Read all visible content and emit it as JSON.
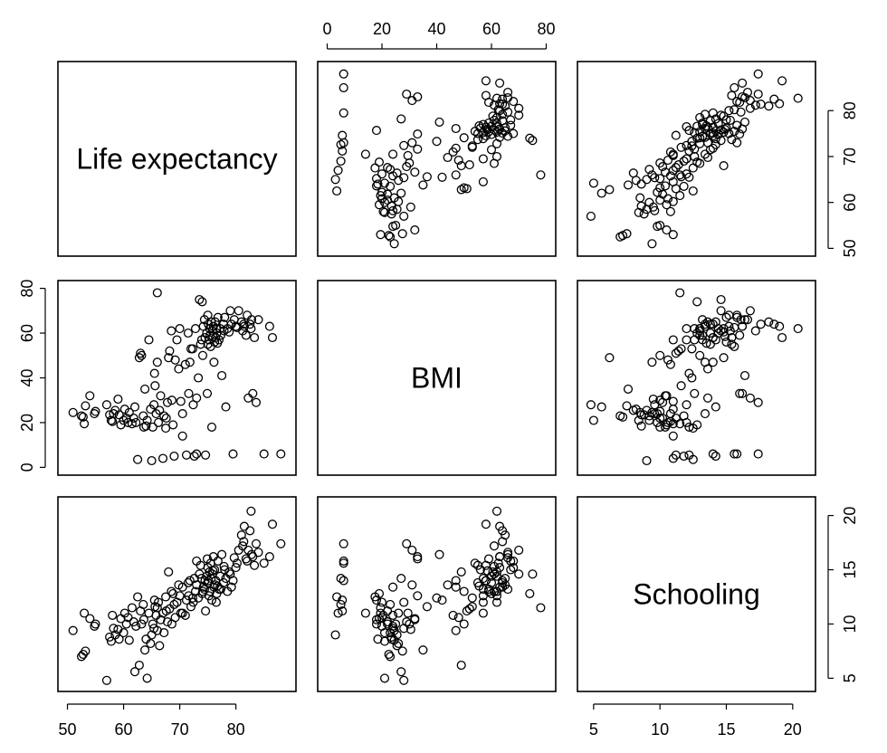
{
  "chart_data": {
    "type": "scatter-matrix",
    "variables": [
      {
        "name": "Life expectancy",
        "lim": [
          50,
          89
        ],
        "ticks": [
          50,
          60,
          70,
          80
        ]
      },
      {
        "name": "BMI",
        "lim": [
          0,
          80
        ],
        "ticks": [
          0,
          20,
          40,
          60,
          80
        ]
      },
      {
        "name": "Schooling",
        "lim": [
          4.5,
          21
        ],
        "ticks": [
          5,
          10,
          15,
          20
        ]
      }
    ],
    "grid": false,
    "point_shape": "open-circle",
    "point_color": "#000000",
    "observations": [
      [
        51.0,
        24.5,
        9.4
      ],
      [
        52.5,
        23.0,
        7.0
      ],
      [
        52.8,
        22.5,
        7.2
      ],
      [
        53.0,
        19.5,
        11.0
      ],
      [
        53.2,
        27.5,
        7.5
      ],
      [
        54.0,
        32.0,
        10.5
      ],
      [
        54.8,
        24.0,
        9.8
      ],
      [
        55.0,
        25.0,
        10.0
      ],
      [
        57.0,
        28.0,
        4.8
      ],
      [
        57.5,
        23.5,
        8.8
      ],
      [
        57.8,
        21.0,
        8.4
      ],
      [
        58.0,
        20.5,
        10.8
      ],
      [
        58.2,
        24.0,
        9.6
      ],
      [
        58.5,
        25.5,
        9.0
      ],
      [
        59.0,
        30.5,
        9.5
      ],
      [
        59.2,
        23.5,
        8.6
      ],
      [
        59.5,
        19.0,
        10.5
      ],
      [
        60.0,
        21.0,
        9.2
      ],
      [
        60.2,
        26.0,
        11.0
      ],
      [
        60.5,
        22.0,
        10.0
      ],
      [
        61.0,
        24.5,
        8.5
      ],
      [
        61.5,
        19.5,
        11.5
      ],
      [
        61.8,
        22.0,
        10.2
      ],
      [
        62.0,
        27.0,
        5.6
      ],
      [
        62.2,
        20.0,
        9.8
      ],
      [
        62.5,
        3.5,
        12.5
      ],
      [
        62.8,
        49.0,
        6.2
      ],
      [
        63.0,
        51.0,
        11.2
      ],
      [
        63.2,
        50.0,
        10.0
      ],
      [
        63.5,
        23.0,
        11.8
      ],
      [
        63.8,
        35.0,
        7.6
      ],
      [
        64.0,
        18.5,
        8.6
      ],
      [
        64.2,
        21.0,
        5.0
      ],
      [
        64.5,
        57.0,
        11.0
      ],
      [
        64.8,
        26.0,
        8.2
      ],
      [
        65.0,
        3.0,
        9.0
      ],
      [
        65.2,
        18.0,
        10.0
      ],
      [
        65.5,
        42.0,
        12.2
      ],
      [
        65.6,
        36.5,
        11.6
      ],
      [
        65.8,
        24.0,
        10.8
      ],
      [
        66.0,
        47.0,
        9.4
      ],
      [
        66.0,
        78.0,
        11.5
      ],
      [
        66.2,
        20.0,
        12.0
      ],
      [
        66.4,
        25.5,
        8.0
      ],
      [
        66.6,
        32.0,
        10.4
      ],
      [
        67.0,
        4.0,
        11.0
      ],
      [
        67.2,
        23.0,
        9.2
      ],
      [
        67.5,
        17.5,
        12.5
      ],
      [
        67.8,
        29.0,
        10.2
      ],
      [
        68.0,
        49.0,
        14.8
      ],
      [
        68.2,
        52.0,
        11.4
      ],
      [
        68.5,
        61.0,
        13.0
      ],
      [
        68.8,
        19.0,
        12.8
      ],
      [
        69.0,
        5.0,
        11.8
      ],
      [
        69.2,
        48.0,
        10.6
      ],
      [
        69.5,
        57.0,
        12.0
      ],
      [
        69.8,
        44.0,
        13.6
      ],
      [
        70.0,
        62.0,
        12.6
      ],
      [
        70.2,
        29.5,
        11.0
      ],
      [
        70.5,
        24.0,
        13.4
      ],
      [
        71.0,
        46.0,
        10.8
      ],
      [
        71.2,
        5.5,
        12.2
      ],
      [
        71.5,
        60.0,
        13.8
      ],
      [
        71.8,
        47.0,
        14.0
      ],
      [
        72.0,
        53.0,
        11.6
      ],
      [
        72.3,
        53.0,
        12.4
      ],
      [
        72.6,
        5.0,
        14.2
      ],
      [
        72.8,
        62.0,
        13.0
      ],
      [
        73.0,
        31.0,
        13.6
      ],
      [
        73.3,
        40.0,
        12.4
      ],
      [
        73.5,
        75.0,
        14.6
      ],
      [
        73.7,
        55.0,
        15.4
      ],
      [
        74.0,
        74.0,
        12.8
      ],
      [
        74.2,
        63.0,
        13.4
      ],
      [
        74.4,
        66.0,
        13.2
      ],
      [
        74.5,
        58.0,
        14.0
      ],
      [
        74.6,
        5.5,
        11.2
      ],
      [
        74.8,
        60.0,
        14.4
      ],
      [
        74.9,
        33.0,
        16.0
      ],
      [
        75.0,
        55.0,
        13.8
      ],
      [
        75.0,
        68.0,
        15.2
      ],
      [
        75.2,
        57.0,
        12.6
      ],
      [
        75.3,
        62.0,
        14.8
      ],
      [
        75.4,
        59.0,
        13.0
      ],
      [
        75.5,
        54.0,
        15.6
      ],
      [
        75.6,
        65.0,
        14.2
      ],
      [
        75.7,
        18.0,
        12.2
      ],
      [
        75.8,
        61.0,
        14.6
      ],
      [
        76.0,
        63.0,
        16.2
      ],
      [
        76.1,
        47.0,
        13.4
      ],
      [
        76.2,
        56.0,
        15.0
      ],
      [
        76.3,
        65.0,
        13.6
      ],
      [
        76.4,
        58.0,
        14.0
      ],
      [
        76.6,
        60.0,
        12.8
      ],
      [
        76.8,
        67.0,
        15.8
      ],
      [
        77.0,
        57.0,
        13.2
      ],
      [
        77.2,
        62.0,
        14.4
      ],
      [
        77.5,
        41.0,
        16.4
      ],
      [
        77.8,
        64.0,
        13.8
      ],
      [
        78.0,
        67.0,
        15.0
      ],
      [
        78.2,
        27.0,
        14.2
      ],
      [
        78.5,
        62.0,
        13.0
      ],
      [
        79.0,
        70.0,
        14.6
      ],
      [
        79.2,
        64.0,
        13.4
      ],
      [
        79.5,
        6.0,
        14.0
      ],
      [
        80.0,
        63.0,
        15.2
      ],
      [
        80.5,
        70.0,
        16.8
      ],
      [
        81.0,
        65.0,
        18.2
      ],
      [
        81.2,
        61.0,
        17.2
      ],
      [
        81.5,
        63.0,
        19.0
      ],
      [
        81.8,
        59.0,
        16.0
      ],
      [
        82.0,
        68.0,
        15.8
      ],
      [
        82.2,
        31.0,
        16.8
      ],
      [
        82.5,
        64.0,
        18.6
      ],
      [
        82.7,
        62.0,
        20.4
      ],
      [
        83.0,
        33.0,
        16.2
      ],
      [
        83.3,
        58.0,
        15.4
      ],
      [
        83.6,
        29.0,
        17.4
      ],
      [
        84.0,
        66.0,
        16.6
      ],
      [
        85.0,
        6.0,
        15.6
      ],
      [
        86.0,
        63.0,
        16.2
      ],
      [
        86.5,
        58.0,
        19.2
      ],
      [
        88.0,
        6.0,
        17.4
      ],
      [
        70.5,
        14.0,
        11.0
      ],
      [
        73.0,
        6.0,
        15.8
      ],
      [
        76.5,
        62.0,
        12.0
      ],
      [
        77.3,
        59.0,
        13.2
      ],
      [
        78.8,
        60.5,
        14.8
      ],
      [
        80.2,
        62.5,
        15.6
      ],
      [
        81.4,
        64.0,
        17.6
      ],
      [
        82.8,
        66.0,
        16.4
      ],
      [
        60.8,
        20.0,
        10.6
      ],
      [
        67.6,
        22.0,
        11.2
      ],
      [
        72.4,
        28.0,
        12.0
      ],
      [
        74.1,
        50.0,
        13.0
      ],
      [
        75.1,
        64.0,
        14.0
      ],
      [
        76.7,
        55.5,
        13.5
      ],
      [
        77.9,
        61.0,
        15.3
      ],
      [
        79.7,
        66.0,
        16.1
      ],
      [
        63.6,
        18.0,
        10.4
      ],
      [
        65.4,
        28.0,
        9.6
      ],
      [
        68.6,
        30.0,
        10.0
      ],
      [
        71.6,
        33.0,
        12.6
      ],
      [
        73.9,
        57.0,
        14.2
      ],
      [
        75.9,
        58.5,
        14.9
      ]
    ]
  }
}
